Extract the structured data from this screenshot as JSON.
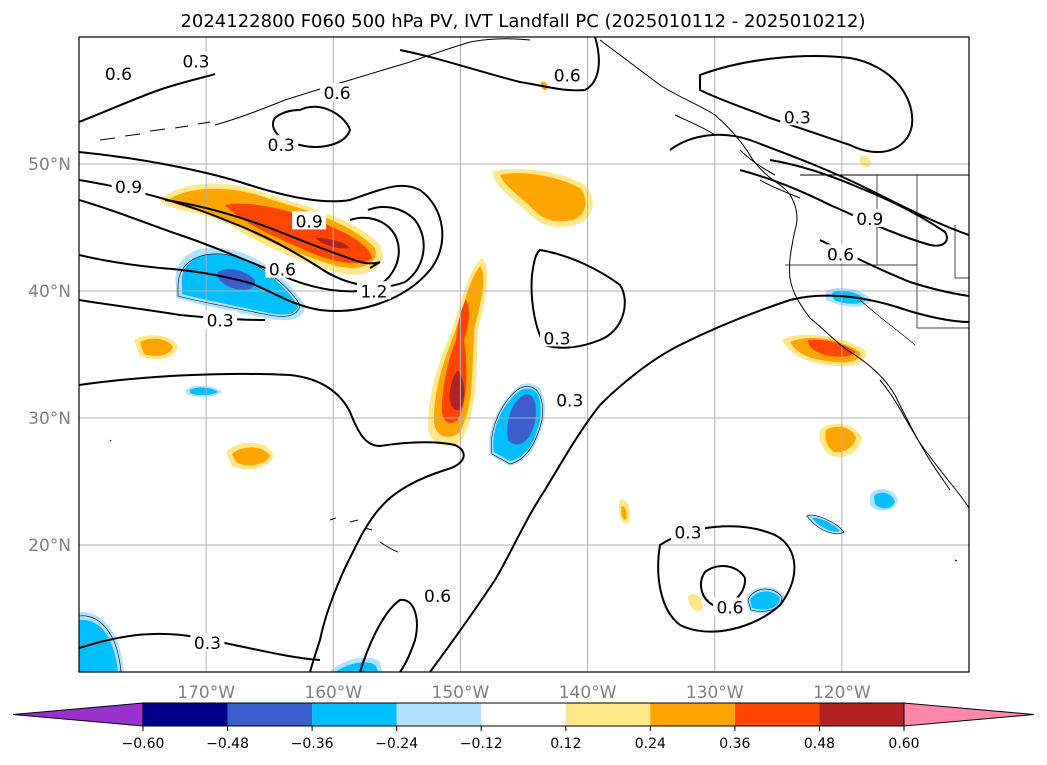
{
  "title": "2024122800 F060 500 hPa PV, IVT Landfall PC (2025010112 - 2025010212)",
  "colors": {
    "contour": "#000000",
    "grid": "#b0b0b0",
    "coast": "#000000"
  },
  "chart_data": {
    "type": "contour-map",
    "title": "2024122800 F060 500 hPa PV, IVT Landfall PC (2025010112 - 2025010212)",
    "xlabel": "",
    "ylabel": "",
    "lon_range": [
      -180,
      -110
    ],
    "lat_range": [
      10,
      60
    ],
    "x_ticks": [
      {
        "value": -170,
        "label": "170°W"
      },
      {
        "value": -160,
        "label": "160°W"
      },
      {
        "value": -150,
        "label": "150°W"
      },
      {
        "value": -140,
        "label": "140°W"
      },
      {
        "value": -130,
        "label": "130°W"
      },
      {
        "value": -120,
        "label": "120°W"
      }
    ],
    "y_ticks": [
      {
        "value": 20,
        "label": "20°N"
      },
      {
        "value": 30,
        "label": "30°N"
      },
      {
        "value": 40,
        "label": "40°N"
      },
      {
        "value": 50,
        "label": "50°N"
      }
    ],
    "grid": true,
    "colorbar": {
      "orientation": "horizontal",
      "extend": "both",
      "levels": [
        -0.6,
        -0.48,
        -0.36,
        -0.24,
        -0.12,
        0.12,
        0.24,
        0.36,
        0.48,
        0.6
      ],
      "tick_labels": [
        "−0.60",
        "−0.48",
        "−0.36",
        "−0.24",
        "−0.12",
        "0.12",
        "0.24",
        "0.36",
        "0.48",
        "0.60"
      ],
      "colors": [
        "#9932cc",
        "#00008b",
        "#3a5fcd",
        "#00bfff",
        "#b0e2ff",
        "#ffffff",
        "#ffe88a",
        "#ffa500",
        "#ff4500",
        "#b22222",
        "#ff88aa"
      ]
    },
    "contour_levels": [
      0.3,
      0.6,
      0.9,
      1.2
    ],
    "contour_labels": [
      {
        "text": "0.6",
        "lon": -176.9,
        "lat": 57.0
      },
      {
        "text": "0.3",
        "lon": -170.8,
        "lat": 58.0
      },
      {
        "text": "0.6",
        "lon": -159.7,
        "lat": 55.5
      },
      {
        "text": "0.3",
        "lon": -164.1,
        "lat": 51.4
      },
      {
        "text": "0.6",
        "lon": -141.6,
        "lat": 56.9
      },
      {
        "text": "0.3",
        "lon": -123.5,
        "lat": 53.6
      },
      {
        "text": "0.9",
        "lon": -176.1,
        "lat": 48.1
      },
      {
        "text": "0.9",
        "lon": -161.9,
        "lat": 45.4
      },
      {
        "text": "0.6",
        "lon": -164.0,
        "lat": 41.6
      },
      {
        "text": "0.3",
        "lon": -168.9,
        "lat": 37.6
      },
      {
        "text": "1.2",
        "lon": -156.8,
        "lat": 39.9
      },
      {
        "text": "0.9",
        "lon": -117.8,
        "lat": 45.6
      },
      {
        "text": "0.6",
        "lon": -120.1,
        "lat": 42.8
      },
      {
        "text": "0.3",
        "lon": -142.4,
        "lat": 36.2
      },
      {
        "text": "0.3",
        "lon": -141.4,
        "lat": 31.3
      },
      {
        "text": "0.3",
        "lon": -132.1,
        "lat": 20.9
      },
      {
        "text": "0.6",
        "lon": -151.8,
        "lat": 15.9
      },
      {
        "text": "0.6",
        "lon": -128.8,
        "lat": 15.0
      },
      {
        "text": "0.3",
        "lon": -169.9,
        "lat": 12.2
      }
    ],
    "shaded_anomalies": [
      {
        "sign": "positive",
        "peak": 0.48,
        "lon": -162,
        "lat": 44.5
      },
      {
        "sign": "positive",
        "peak": 0.48,
        "lon": -150,
        "lat": 33
      },
      {
        "sign": "positive",
        "peak": 0.36,
        "lon": -143,
        "lat": 47
      },
      {
        "sign": "positive",
        "peak": 0.36,
        "lon": -119.5,
        "lat": 35.5
      },
      {
        "sign": "positive",
        "peak": 0.24,
        "lon": -119.5,
        "lat": 28
      },
      {
        "sign": "positive",
        "peak": 0.24,
        "lon": -166,
        "lat": 27
      },
      {
        "sign": "positive",
        "peak": 0.24,
        "lon": -175,
        "lat": 36
      },
      {
        "sign": "negative",
        "peak": -0.48,
        "lon": -168,
        "lat": 40.5
      },
      {
        "sign": "negative",
        "peak": -0.48,
        "lon": -146,
        "lat": 30
      },
      {
        "sign": "negative",
        "peak": -0.24,
        "lon": -126,
        "lat": 15.5
      },
      {
        "sign": "negative",
        "peak": -0.24,
        "lon": -118.5,
        "lat": 24
      },
      {
        "sign": "negative",
        "peak": -0.24,
        "lon": -119.5,
        "lat": 39.5
      },
      {
        "sign": "negative",
        "peak": -0.24,
        "lon": -178,
        "lat": 12
      }
    ]
  }
}
